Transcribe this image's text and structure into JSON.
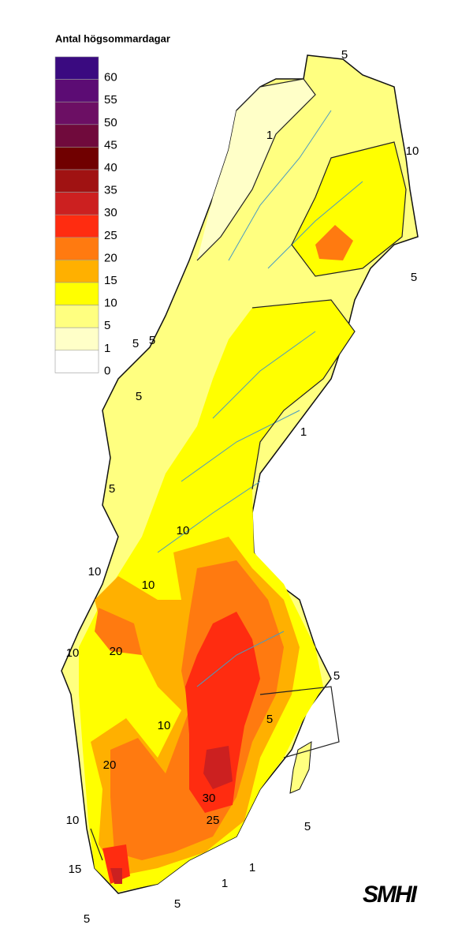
{
  "title": "Antal högsommardagar",
  "legend": [
    {
      "label": "60",
      "color": "#3a0a80"
    },
    {
      "label": "55",
      "color": "#5c0c74"
    },
    {
      "label": "50",
      "color": "#6c0f64"
    },
    {
      "label": "45",
      "color": "#700a3c"
    },
    {
      "label": "40",
      "color": "#700000"
    },
    {
      "label": "35",
      "color": "#a01212"
    },
    {
      "label": "30",
      "color": "#cc2020"
    },
    {
      "label": "25",
      "color": "#ff2c10"
    },
    {
      "label": "20",
      "color": "#ff7a10"
    },
    {
      "label": "15",
      "color": "#ffb000"
    },
    {
      "label": "10",
      "color": "#ffff00"
    },
    {
      "label": "5",
      "color": "#ffff80"
    },
    {
      "label": "1",
      "color": "#ffffc8"
    },
    {
      "label": "0",
      "color": "#ffffff"
    }
  ],
  "contour_labels": [
    "5",
    "1",
    "10",
    "5",
    "5",
    "5",
    "5",
    "1",
    "5",
    "10",
    "10",
    "10",
    "20",
    "10",
    "5",
    "5",
    "10",
    "20",
    "30",
    "25",
    "10",
    "5",
    "15",
    "1",
    "1",
    "5",
    "5"
  ],
  "logo": "SMHI"
}
